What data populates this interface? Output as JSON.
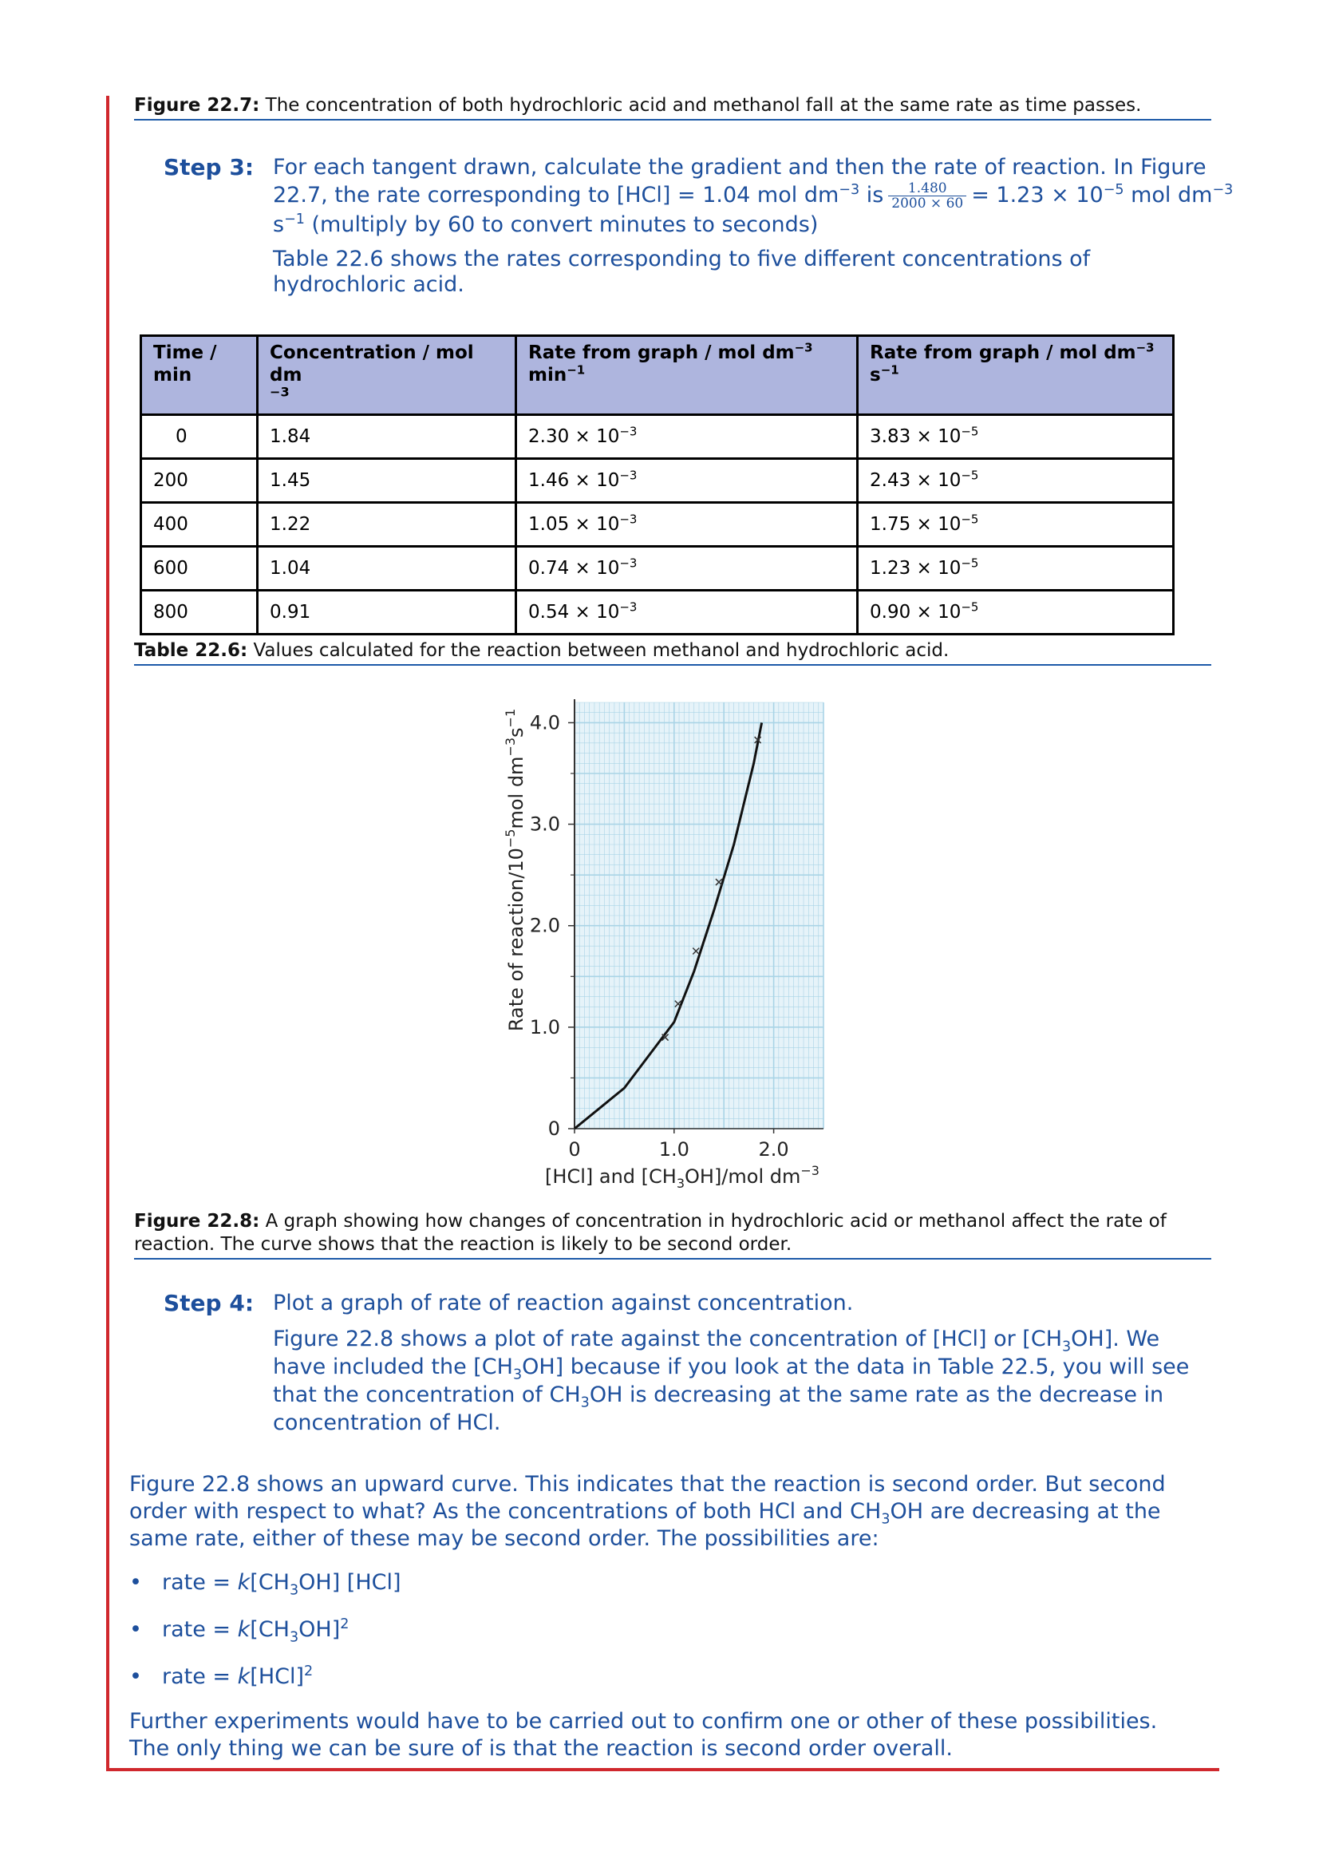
{
  "fig227_caption": {
    "label": "Figure 22.7:",
    "text": "The concentration of both hydrochloric acid and methanol fall at the same rate as time passes."
  },
  "step3": {
    "label": "Step 3:",
    "line1": "For each tangent drawn, calculate the gradient and then the rate of reaction. In Figure",
    "line2a": "22.7, the rate corresponding to [HCl] = 1.04 mol dm",
    "line2a_sup": "−3",
    "line2b": " is",
    "frac_num": "1.480",
    "frac_den": "2000 × 60",
    "line2c": "= 1.23 × 10",
    "line2c_sup": "−5",
    "line2d": " mol dm",
    "line2d_sup": "−3",
    "line3a": "s",
    "line3a_sup": "−1",
    "line3b": " (multiply by 60 to convert minutes to seconds)",
    "para2": "Table 22.6 shows the rates corresponding to five different concentrations of hydrochloric acid."
  },
  "table": {
    "headers": [
      "Time / min",
      "Concentration / mol dm −3",
      "Rate from graph / mol dm−3 min−1",
      "Rate from graph / mol dm−3 s−1"
    ],
    "rows": [
      [
        "0",
        "1.84",
        "2.30 × 10−3",
        "3.83 × 10−5"
      ],
      [
        "200",
        "1.45",
        "1.46 × 10−3",
        "2.43 × 10−5"
      ],
      [
        "400",
        "1.22",
        "1.05 × 10−3",
        "1.75 × 10−5"
      ],
      [
        "600",
        "1.04",
        "0.74 × 10−3",
        "1.23 × 10−5"
      ],
      [
        "800",
        "0.91",
        "0.54 × 10−3",
        "0.90 × 10−5"
      ]
    ]
  },
  "table_caption": {
    "label": "Table 22.6:",
    "text": "Values calculated for the reaction between methanol and hydrochloric acid."
  },
  "chart_data": {
    "type": "scatter",
    "xlabel": "[HCl] and [CH3OH] / mol dm−3",
    "ylabel": "Rate of reaction / 10−5 mol dm−3 s−1",
    "x_ticks": [
      "0",
      "1.0",
      "2.0"
    ],
    "y_ticks": [
      "0",
      "1.0",
      "2.0",
      "3.0",
      "4.0"
    ],
    "xlim": [
      0,
      2.5
    ],
    "ylim": [
      0,
      4.2
    ],
    "grid": true,
    "points": {
      "x": [
        0.91,
        1.04,
        1.22,
        1.45,
        1.84
      ],
      "y": [
        0.9,
        1.23,
        1.75,
        2.43,
        3.83
      ]
    },
    "curve": {
      "x": [
        0,
        0.5,
        1.0,
        1.2,
        1.4,
        1.6,
        1.8,
        1.88
      ],
      "y": [
        0,
        0.4,
        1.05,
        1.55,
        2.15,
        2.8,
        3.6,
        4.0
      ]
    },
    "colors": {
      "grid": "#a9d4e6",
      "background": "#e6f3f9",
      "curve": "#111111"
    }
  },
  "fig228_caption": {
    "label": "Figure 22.8:",
    "text": "A graph showing how changes of concentration in hydrochloric acid or methanol affect the rate of reaction. The curve shows that the reaction is likely to be second order."
  },
  "step4": {
    "label": "Step 4:",
    "line1": "Plot a graph of rate of reaction against concentration.",
    "p_a": "Figure 22.8 shows a plot of rate against the concentration of [HCl] or [CH",
    "p_b": "OH]. We have included the [CH",
    "p_c": "OH] because if you look at the data in Table 22.5, you will see that the concentration of CH",
    "p_d": "OH is decreasing at the same rate as the decrease in concentration of HCl.",
    "sub3": "3"
  },
  "para_main": {
    "a": "Figure 22.8 shows an upward curve. This indicates that the reaction is second order. But second order with respect to what? As the concentrations of both HCl and CH",
    "b": "OH are decreasing at the same rate, either of these may be second order. The possibilities are:"
  },
  "bullets": {
    "symbol": "•",
    "b1a": "rate = ",
    "k": "k",
    "b1b": "[CH",
    "b1c": "OH] [HCl]",
    "b2b": "[CH",
    "b2c": "OH]",
    "sq": "2",
    "b3b": "[HCl]"
  },
  "para_final": "Further experiments would have to be carried out to confirm one or other of these possibilities. The only thing we can be sure of is that the reaction is second order overall."
}
